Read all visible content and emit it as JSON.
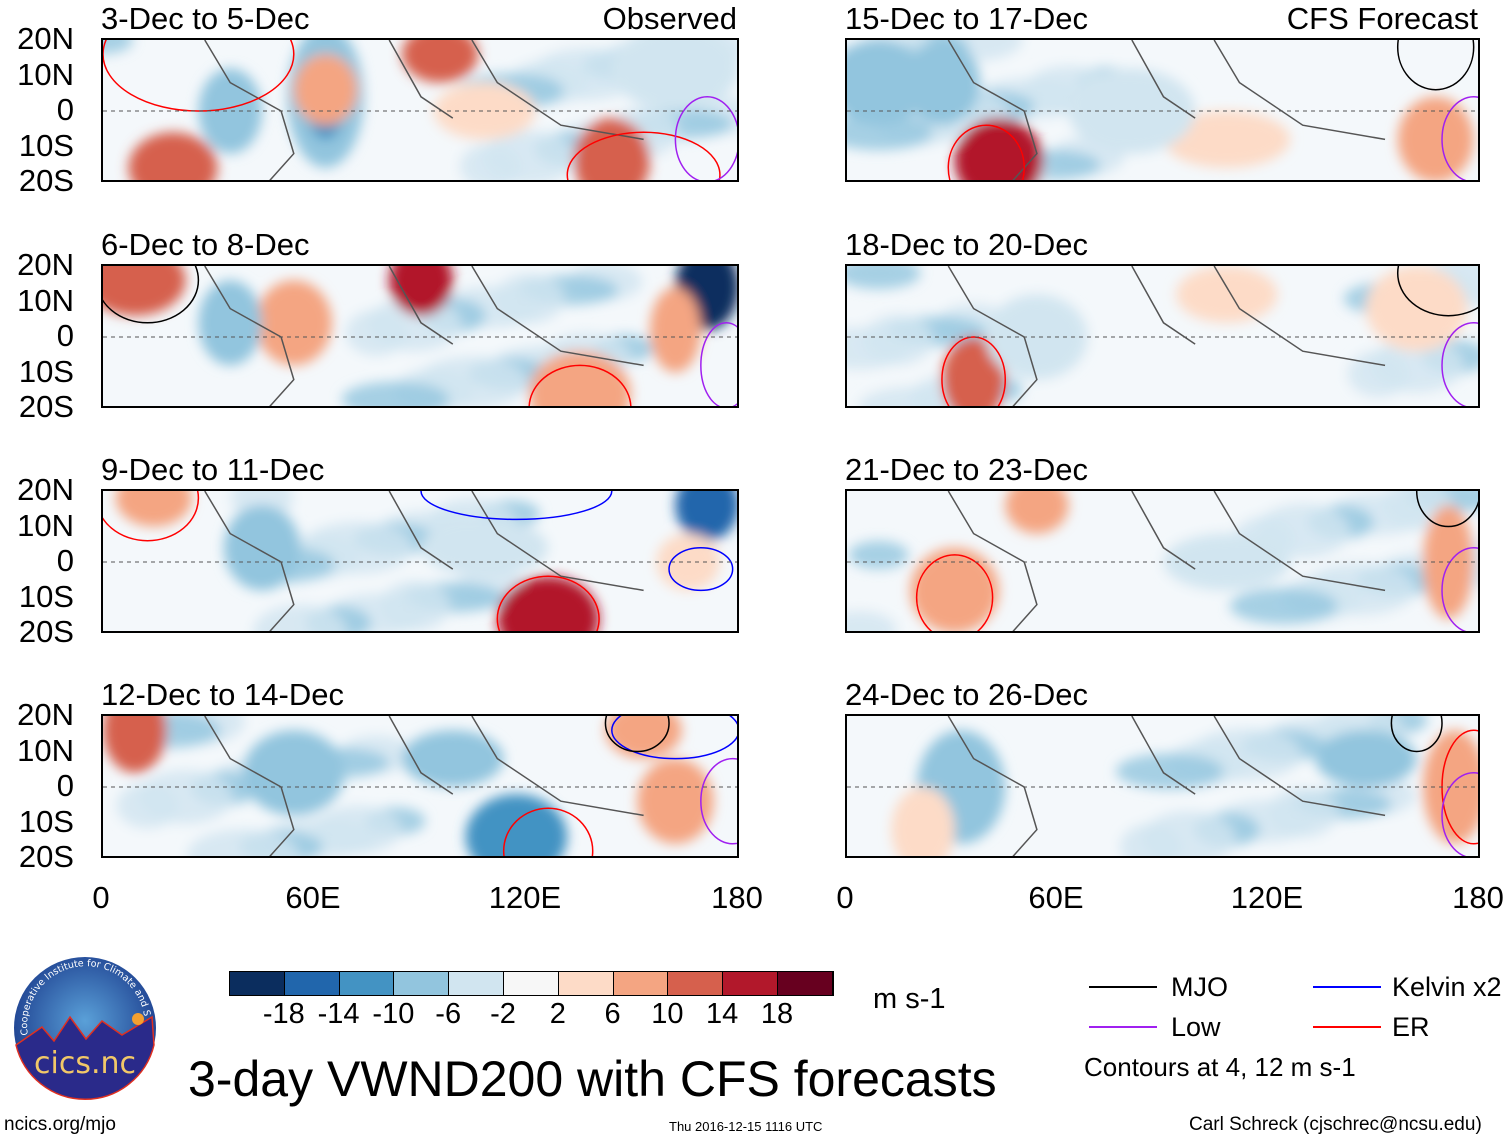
{
  "panels": [
    {
      "title": "3-Dec to 5-Dec",
      "tag": "Observed"
    },
    {
      "title": "15-Dec to 17-Dec",
      "tag": "CFS Forecast"
    },
    {
      "title": "6-Dec to 8-Dec"
    },
    {
      "title": "18-Dec to 20-Dec"
    },
    {
      "title": "9-Dec to 11-Dec"
    },
    {
      "title": "21-Dec to 23-Dec"
    },
    {
      "title": "12-Dec to 14-Dec"
    },
    {
      "title": "24-Dec to 26-Dec"
    }
  ],
  "y_ticks": [
    "20N",
    "10N",
    "0",
    "10S",
    "20S"
  ],
  "x_ticks": [
    "0",
    "60E",
    "120E",
    "180"
  ],
  "colorbar": {
    "labels": [
      "-18",
      "-14",
      "-10",
      "-6",
      "-2",
      "2",
      "6",
      "10",
      "14",
      "18"
    ],
    "colors": [
      "#0b2d5e",
      "#2166ac",
      "#4393c3",
      "#92c5de",
      "#d1e5f0",
      "#f7f7f7",
      "#fddbc7",
      "#f4a582",
      "#d6604d",
      "#b2182b",
      "#67001f"
    ],
    "units": "m s-1"
  },
  "legend": {
    "items": [
      {
        "label": "MJO",
        "color": "#000000"
      },
      {
        "label": "Kelvin x2",
        "color": "#0000ff"
      },
      {
        "label": "Low",
        "color": "#a020f0"
      },
      {
        "label": "ER",
        "color": "#ff0000"
      }
    ],
    "note": "Contours at 4, 12 m s-1"
  },
  "title": "3-day VWND200 with CFS forecasts",
  "footer": {
    "left": "ncics.org/mjo",
    "center": "Thu 2016-12-15 1116 UTC",
    "right": "Carl Schreck (cjschrec@ncsu.edu)"
  },
  "logo": {
    "text": "cics.nc",
    "ring": "Cooperative Institute for Climate and Satellites"
  }
}
